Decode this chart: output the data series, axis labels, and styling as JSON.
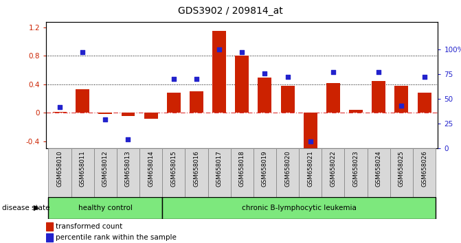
{
  "title": "GDS3902 / 209814_at",
  "samples": [
    "GSM658010",
    "GSM658011",
    "GSM658012",
    "GSM658013",
    "GSM658014",
    "GSM658015",
    "GSM658016",
    "GSM658017",
    "GSM658018",
    "GSM658019",
    "GSM658020",
    "GSM658021",
    "GSM658022",
    "GSM658023",
    "GSM658024",
    "GSM658025",
    "GSM658026"
  ],
  "bar_values": [
    0.01,
    0.33,
    -0.02,
    -0.05,
    -0.08,
    0.28,
    0.3,
    1.15,
    0.8,
    0.5,
    0.38,
    -0.52,
    0.42,
    0.04,
    0.45,
    0.38,
    0.28
  ],
  "dot_values": [
    0.42,
    0.97,
    0.29,
    0.09,
    null,
    0.7,
    0.7,
    1.0,
    0.97,
    0.76,
    0.72,
    0.07,
    0.77,
    null,
    0.77,
    0.43,
    0.72
  ],
  "bar_color": "#cc2200",
  "dot_color": "#2222cc",
  "healthy_control_count": 5,
  "ylim_left": [
    -0.5,
    1.28
  ],
  "ylim_right": [
    0,
    128
  ],
  "yticks_left": [
    -0.4,
    0.0,
    0.4,
    0.8,
    1.2
  ],
  "ytick_labels_left": [
    "-0.4",
    "0",
    "0.4",
    "0.8",
    "1.2"
  ],
  "yticks_right": [
    0,
    25,
    50,
    75,
    100
  ],
  "ytick_labels_right": [
    "0",
    "25",
    "50",
    "75",
    "100%"
  ],
  "healthy_label": "healthy control",
  "leukemia_label": "chronic B-lymphocytic leukemia",
  "disease_state_label": "disease state",
  "legend_bar_label": "transformed count",
  "legend_dot_label": "percentile rank within the sample",
  "green_color": "#7de87d",
  "gray_cell_color": "#d8d8d8"
}
